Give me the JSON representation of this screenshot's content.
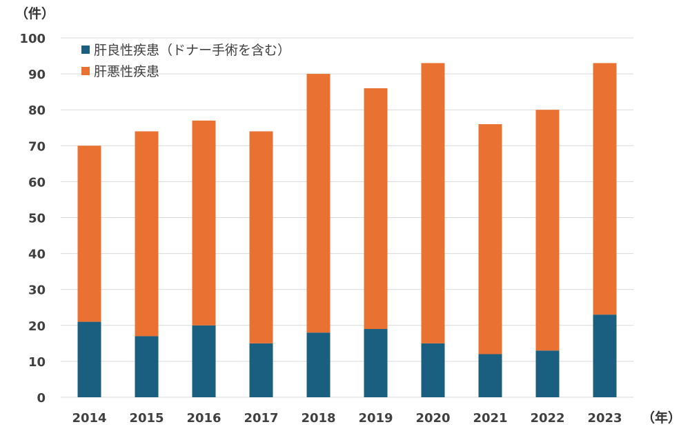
{
  "chart_data": {
    "type": "bar",
    "stacked": true,
    "ylabel": "（件）",
    "xlabel": "（年）",
    "ylim": [
      0,
      100
    ],
    "yticks": [
      0,
      10,
      20,
      30,
      40,
      50,
      60,
      70,
      80,
      90,
      100
    ],
    "grid": true,
    "legend_position": "top-left",
    "categories": [
      "2014",
      "2015",
      "2016",
      "2017",
      "2018",
      "2019",
      "2020",
      "2021",
      "2022",
      "2023"
    ],
    "series": [
      {
        "name": "肝良性疾患（ドナー手術を含む）",
        "color": "#1a5f80",
        "values": [
          21,
          17,
          20,
          15,
          18,
          19,
          15,
          12,
          13,
          23
        ]
      },
      {
        "name": "肝悪性疾患",
        "color": "#e97131",
        "values": [
          49,
          57,
          57,
          59,
          72,
          67,
          78,
          64,
          67,
          70
        ]
      }
    ]
  }
}
